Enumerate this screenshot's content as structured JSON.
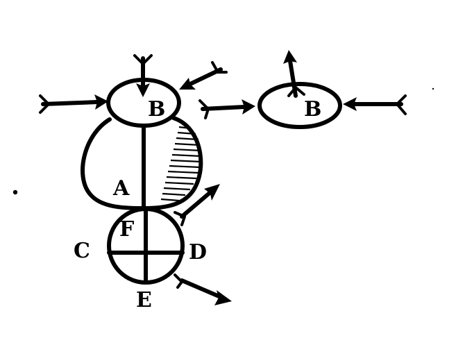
{
  "labels": {
    "b_left": "B",
    "b_right": "B",
    "a": "A",
    "f": "F",
    "c": "C",
    "d": "D",
    "e": "E"
  }
}
